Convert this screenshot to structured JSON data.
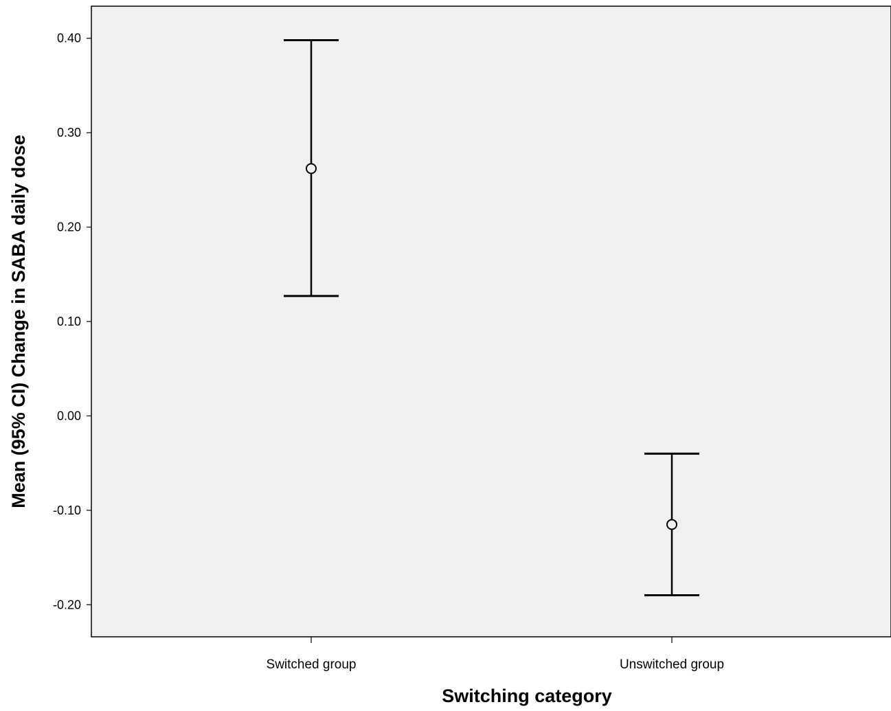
{
  "chart_data": {
    "type": "errorbar",
    "xlabel": "Switching category",
    "ylabel": "Mean (95% CI) Change in SABA daily dose",
    "categories": [
      "Switched group",
      "Unswitched group"
    ],
    "series": [
      {
        "means": [
          0.262,
          -0.115
        ],
        "lower": [
          0.127,
          -0.19
        ],
        "upper": [
          0.398,
          -0.04
        ]
      }
    ],
    "ylim": [
      -0.234,
      0.434
    ],
    "yticks": [
      {
        "value": 0.4,
        "label": "0.40"
      },
      {
        "value": 0.3,
        "label": "0.30"
      },
      {
        "value": 0.2,
        "label": "0.20"
      },
      {
        "value": 0.1,
        "label": "0.10"
      },
      {
        "value": 0.0,
        "label": "0.00"
      },
      {
        "value": -0.1,
        "label": "-0.10"
      },
      {
        "value": -0.2,
        "label": "-0.20"
      }
    ],
    "grid": false,
    "legend": "none",
    "colors": {
      "plot_background": "#f0f0f0",
      "marks": "#000000",
      "frame": "#000000"
    }
  }
}
